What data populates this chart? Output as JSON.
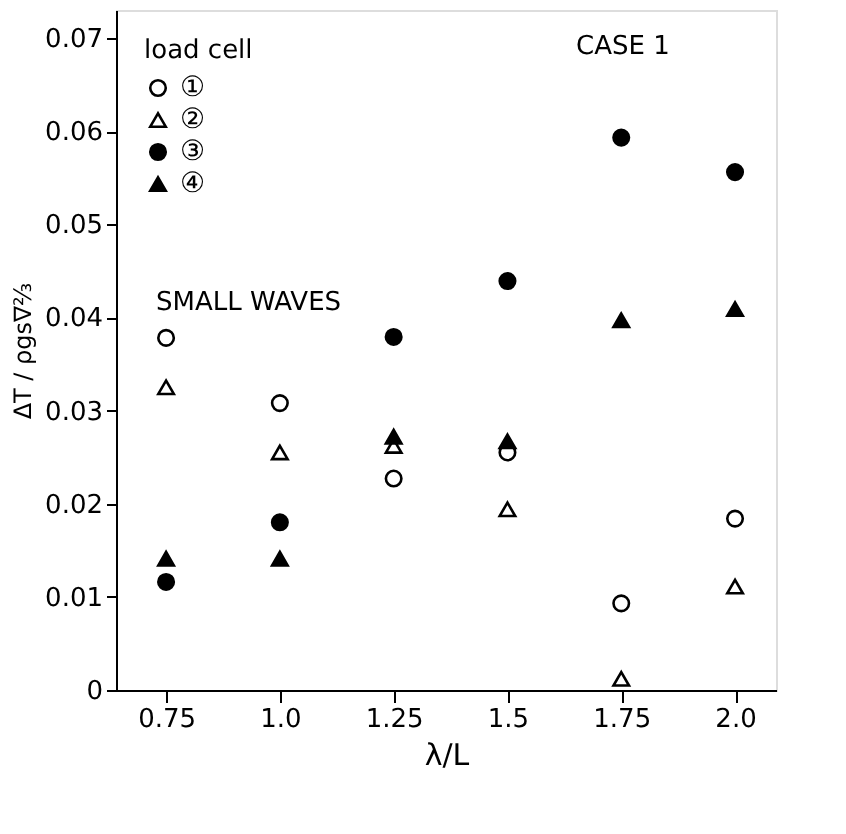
{
  "chart_data": {
    "type": "scatter",
    "xlabel": "λ/L",
    "ylabel": "ΔT / ρgs∇⅔",
    "legend_title": "load cell",
    "legend": "top left",
    "grid": false,
    "x": [
      0.75,
      1.0,
      1.25,
      1.5,
      1.75,
      2.0
    ],
    "xlim": [
      0.64,
      2.09
    ],
    "xticks": [
      0.75,
      {
        "value": 1.0,
        "label": "1.0"
      },
      1.25,
      1.5,
      1.75,
      {
        "value": 2.0,
        "label": "2.0"
      }
    ],
    "ylim": [
      0,
      0.073
    ],
    "yticks": [
      0,
      0.01,
      0.02,
      0.03,
      0.04,
      0.05,
      0.06,
      0.07
    ],
    "series": [
      {
        "name": "①",
        "color": "#ffffff",
        "marker": "circle",
        "values": [
          0.0378,
          0.0308,
          0.0227,
          0.0255,
          0.0093,
          0.0184
        ]
      },
      {
        "name": "②",
        "color": "#ffffff",
        "marker": "triangle",
        "values": [
          0.0325,
          0.0255,
          0.0262,
          0.0194,
          0.0012,
          0.0111
        ]
      },
      {
        "name": "③",
        "color": "#000000",
        "marker": "circle",
        "values": [
          0.0116,
          0.018,
          0.0379,
          0.0439,
          0.0593,
          0.0556
        ]
      },
      {
        "name": "④",
        "color": "#000000",
        "marker": "triangle",
        "values": [
          0.0141,
          0.0141,
          0.0272,
          0.0267,
          0.0397,
          0.0409
        ]
      }
    ],
    "annotations": [
      "CASE 1",
      "SMALL WAVES"
    ]
  }
}
